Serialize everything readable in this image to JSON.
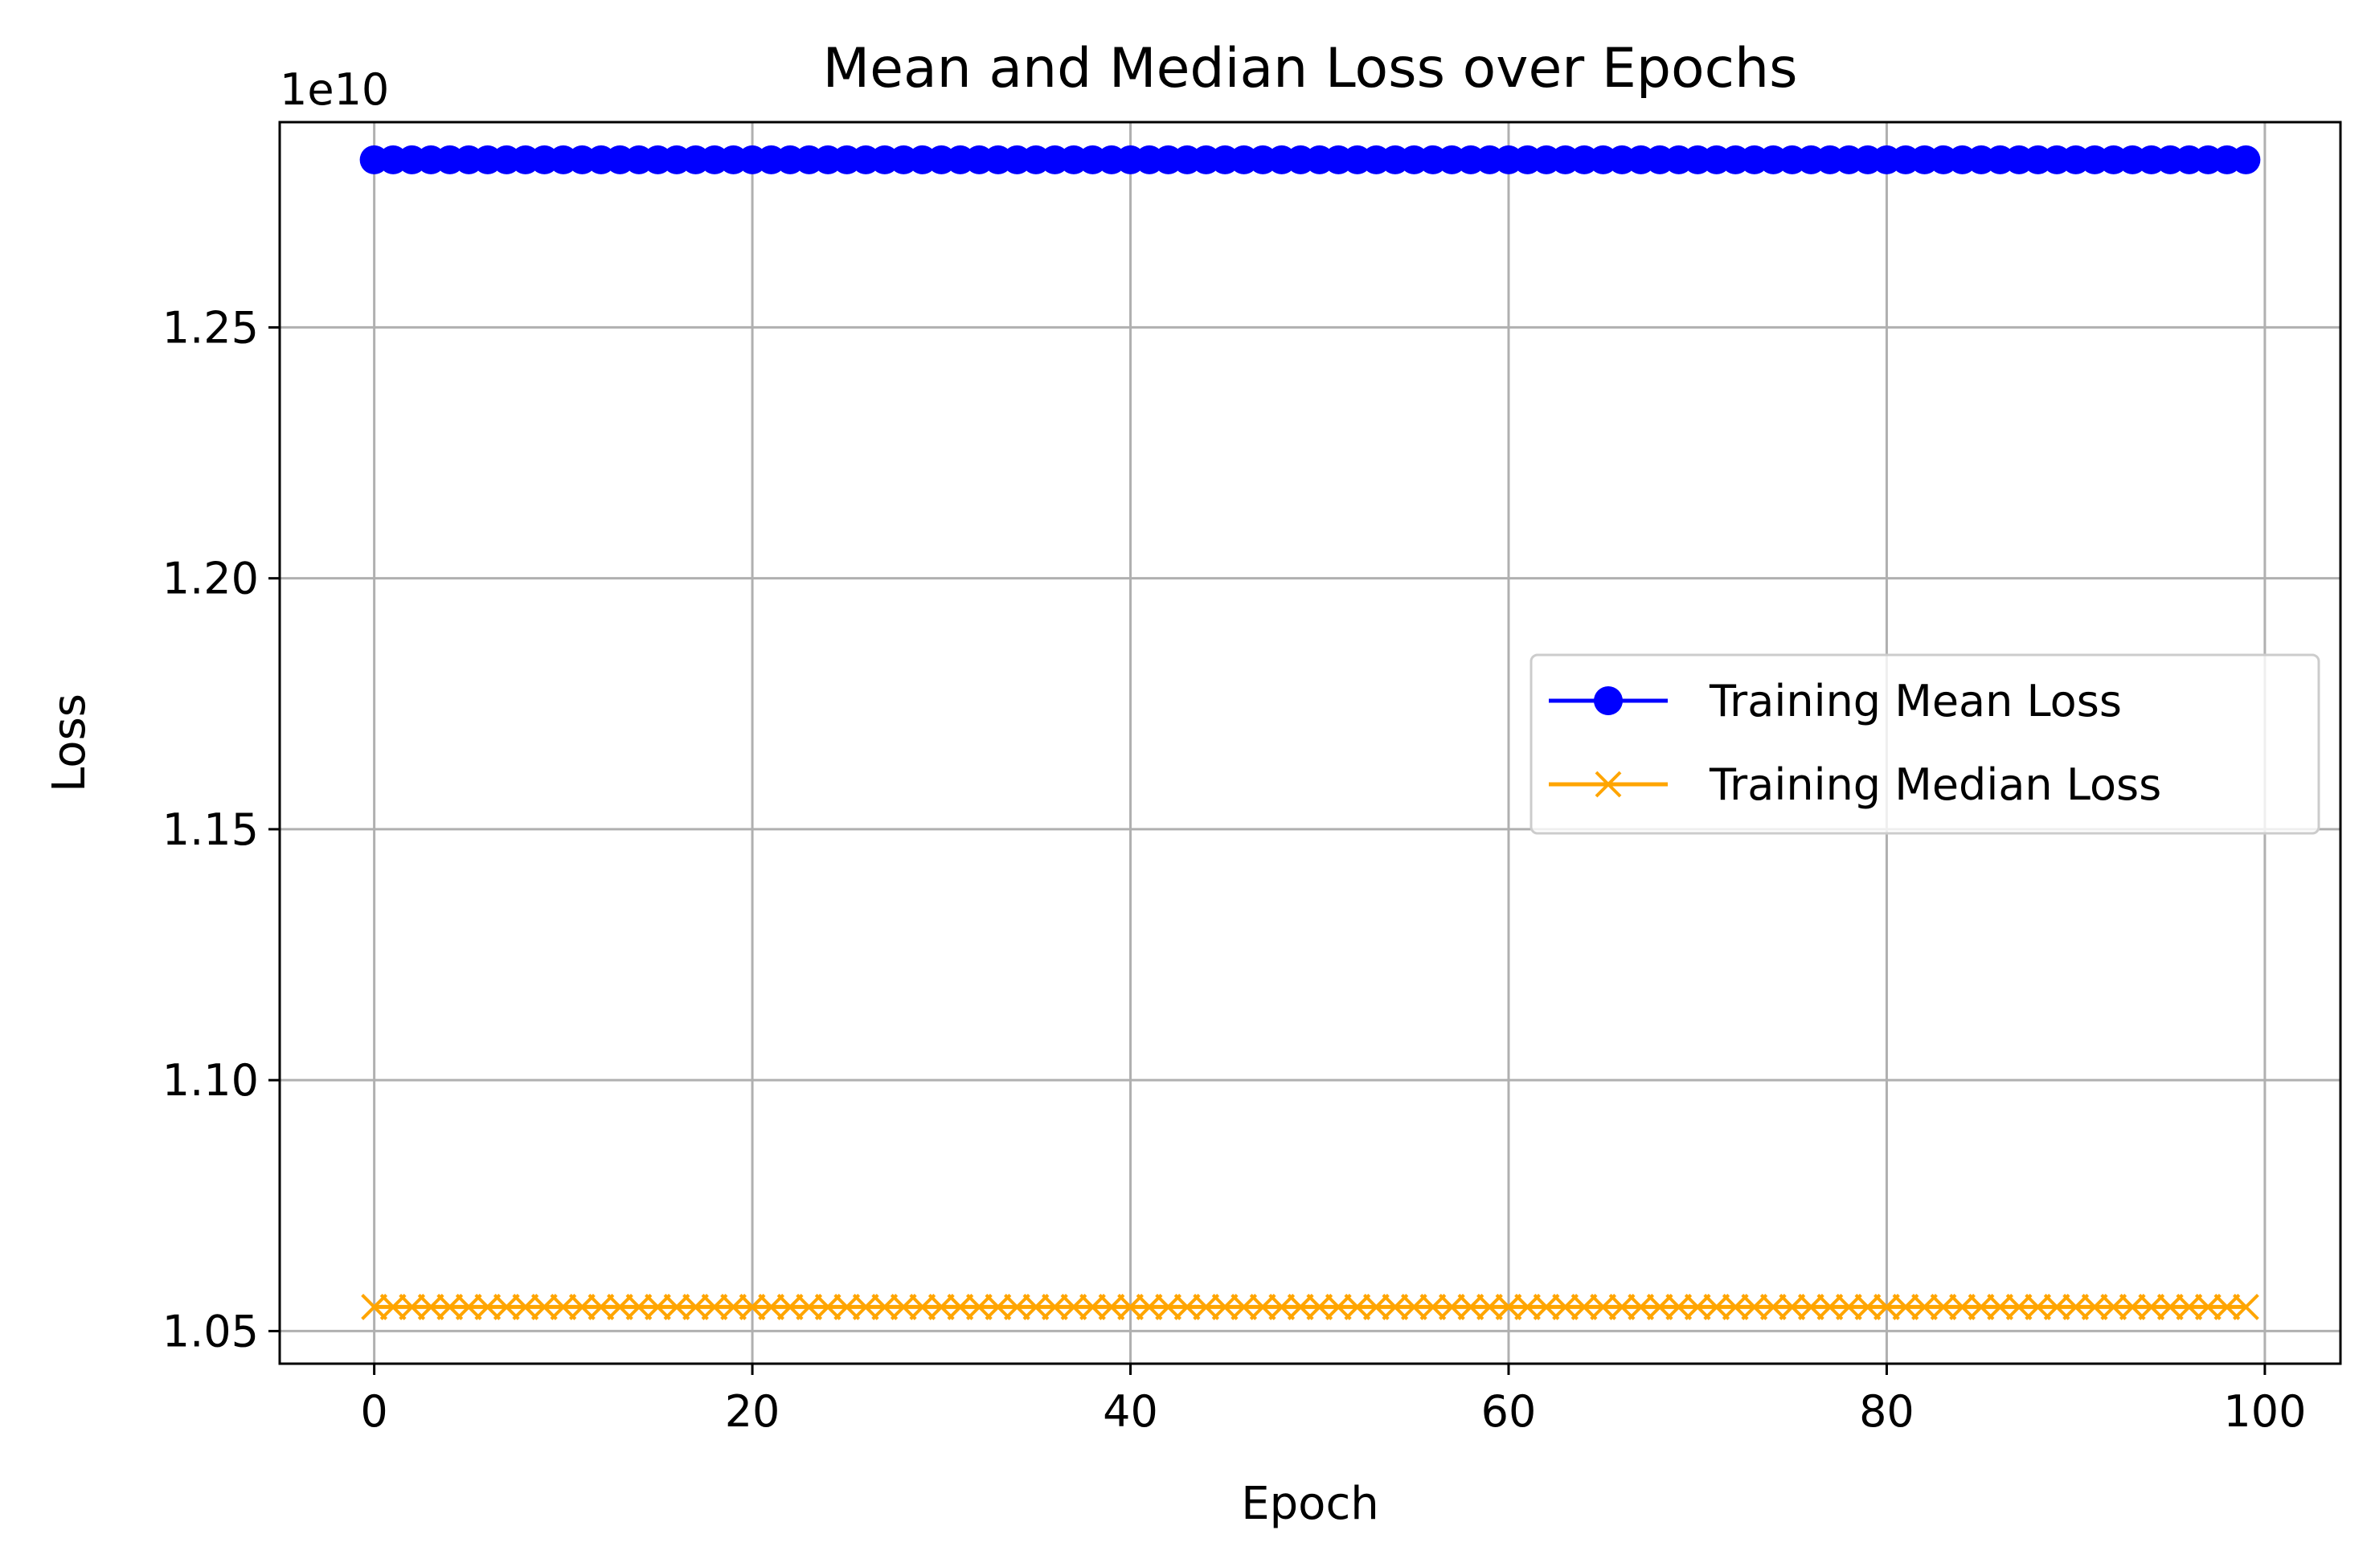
{
  "chart_data": {
    "type": "line",
    "title": "Mean and Median Loss over Epochs",
    "xlabel": "Epoch",
    "ylabel": "Loss",
    "y_offset_text": "1e10",
    "xlim": [
      -5,
      104
    ],
    "ylim": [
      1.0435,
      1.2909
    ],
    "y_scale_factor": 10000000000,
    "x_ticks": [
      0,
      20,
      40,
      60,
      80,
      100
    ],
    "x_tick_labels": [
      "0",
      "20",
      "40",
      "60",
      "80",
      "100"
    ],
    "y_ticks": [
      1.05,
      1.1,
      1.15,
      1.2,
      1.25
    ],
    "y_tick_labels": [
      "1.05",
      "1.10",
      "1.15",
      "1.20",
      "1.25"
    ],
    "grid": true,
    "legend_position": "center-right",
    "x_start": 0,
    "x_end": 99,
    "series": [
      {
        "name": "Training Mean Loss",
        "color": "#0000ff",
        "marker": "circle",
        "value": 1.2834
      },
      {
        "name": "Training Median Loss",
        "color": "#ffa500",
        "marker": "x",
        "value": 1.0548
      }
    ]
  }
}
